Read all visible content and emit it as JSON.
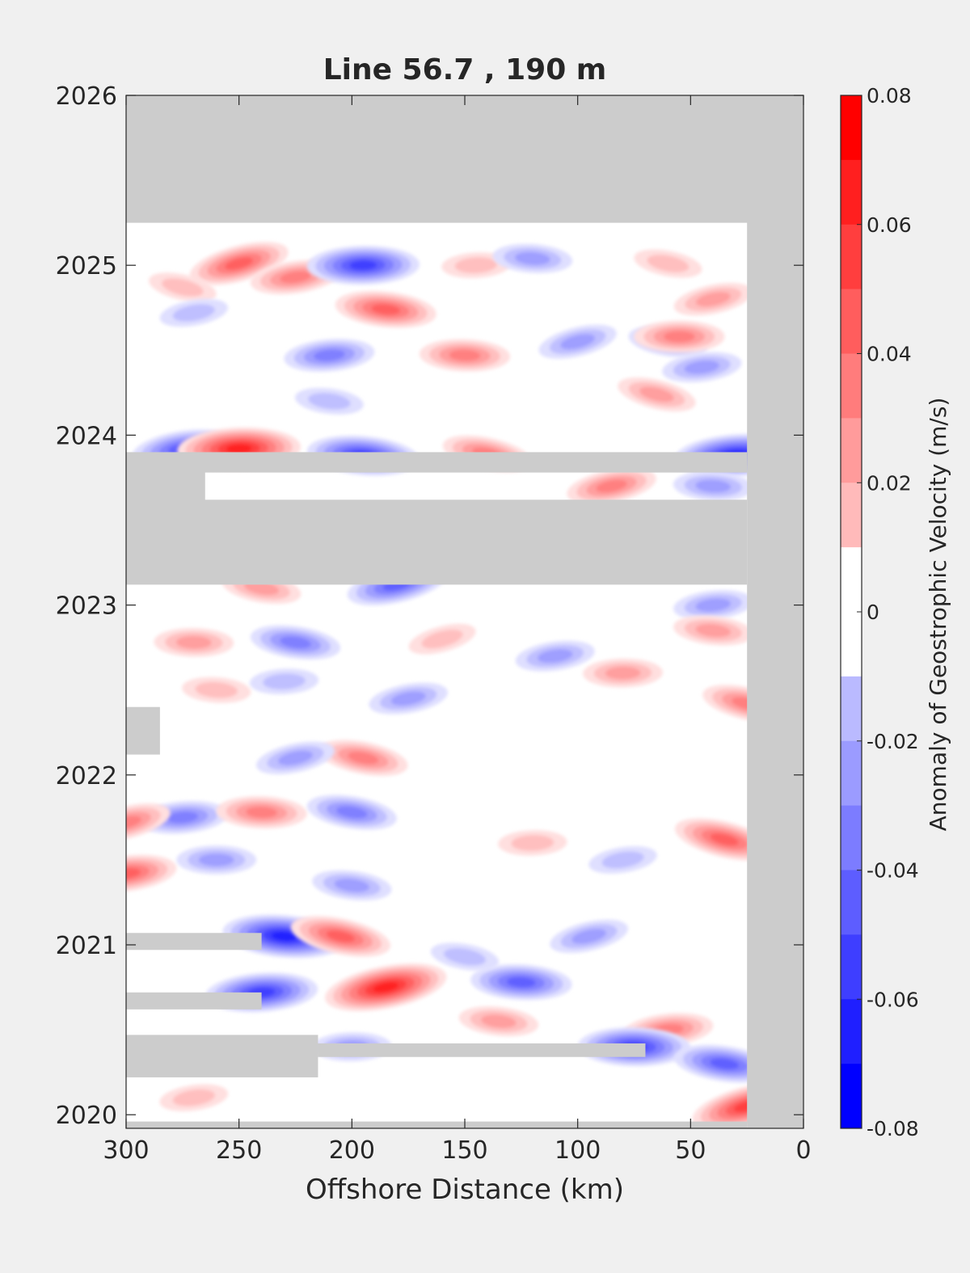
{
  "chart_data": {
    "type": "heatmap",
    "title": "Line 56.7 , 190 m",
    "xlabel": "Offshore Distance (km)",
    "ylabel": "",
    "x_reversed": true,
    "xlim": [
      300,
      0
    ],
    "ylim": [
      2019.92,
      2026
    ],
    "x_ticks": [
      "300",
      "250",
      "200",
      "150",
      "100",
      "50",
      "0"
    ],
    "y_ticks": [
      "2020",
      "2021",
      "2022",
      "2023",
      "2024",
      "2025",
      "2026"
    ],
    "colorbar": {
      "label": "Anomaly of Geostrophic Velocity (m/s)",
      "range": [
        -0.08,
        0.08
      ],
      "step": 0.01,
      "tick_labels": [
        "0.08",
        "0.06",
        "0.04",
        "0.02",
        "0",
        "-0.02",
        "-0.04",
        "-0.06",
        "-0.08"
      ]
    },
    "missing_data_color": "#cccccc",
    "positive_color": "#ff0000",
    "negative_color": "#0000ff",
    "missing_regions": [
      {
        "x0": 300,
        "x1": 0,
        "y0": 2025.25,
        "y1": 2026
      },
      {
        "x0": 25,
        "x1": 0,
        "y0": 2019.92,
        "y1": 2026
      },
      {
        "x0": 300,
        "x1": 25,
        "y0": 2023.12,
        "y1": 2023.62
      },
      {
        "x0": 300,
        "x1": 25,
        "y0": 2023.78,
        "y1": 2023.9
      },
      {
        "x0": 300,
        "x1": 265,
        "y0": 2023.6,
        "y1": 2023.8
      },
      {
        "x0": 300,
        "x1": 285,
        "y0": 2022.12,
        "y1": 2022.4
      },
      {
        "x0": 300,
        "x1": 240,
        "y0": 2020.97,
        "y1": 2021.07
      },
      {
        "x0": 300,
        "x1": 240,
        "y0": 2020.62,
        "y1": 2020.72
      },
      {
        "x0": 300,
        "x1": 215,
        "y0": 2020.22,
        "y1": 2020.47
      },
      {
        "x0": 215,
        "x1": 70,
        "y0": 2020.34,
        "y1": 2020.42
      },
      {
        "x0": 300,
        "x1": 25,
        "y0": 2019.92,
        "y1": 2019.96
      }
    ],
    "features": [
      {
        "x": 250,
        "y": 2025.01,
        "value": 0.05
      },
      {
        "x": 225,
        "y": 2024.93,
        "value": 0.04
      },
      {
        "x": 195,
        "y": 2025.0,
        "value": -0.06
      },
      {
        "x": 185,
        "y": 2024.74,
        "value": 0.05
      },
      {
        "x": 275,
        "y": 2024.87,
        "value": 0.02
      },
      {
        "x": 270,
        "y": 2024.72,
        "value": -0.02
      },
      {
        "x": 145,
        "y": 2025.0,
        "value": 0.02
      },
      {
        "x": 120,
        "y": 2025.04,
        "value": -0.03
      },
      {
        "x": 60,
        "y": 2025.01,
        "value": 0.02
      },
      {
        "x": 40,
        "y": 2024.8,
        "value": 0.03
      },
      {
        "x": 210,
        "y": 2024.47,
        "value": -0.04
      },
      {
        "x": 150,
        "y": 2024.47,
        "value": 0.04
      },
      {
        "x": 60,
        "y": 2024.55,
        "value": -0.03
      },
      {
        "x": 100,
        "y": 2024.55,
        "value": -0.03
      },
      {
        "x": 45,
        "y": 2024.4,
        "value": -0.03
      },
      {
        "x": 55,
        "y": 2024.58,
        "value": 0.04
      },
      {
        "x": 210,
        "y": 2024.2,
        "value": -0.02
      },
      {
        "x": 65,
        "y": 2024.24,
        "value": 0.03
      },
      {
        "x": 275,
        "y": 2023.92,
        "value": -0.05
      },
      {
        "x": 250,
        "y": 2023.92,
        "value": 0.07
      },
      {
        "x": 195,
        "y": 2023.88,
        "value": -0.06
      },
      {
        "x": 140,
        "y": 2023.89,
        "value": 0.04
      },
      {
        "x": 85,
        "y": 2023.7,
        "value": 0.04
      },
      {
        "x": 30,
        "y": 2023.88,
        "value": -0.07
      },
      {
        "x": 40,
        "y": 2023.7,
        "value": -0.03
      },
      {
        "x": 240,
        "y": 2023.1,
        "value": 0.03
      },
      {
        "x": 180,
        "y": 2023.12,
        "value": -0.05
      },
      {
        "x": 40,
        "y": 2023.0,
        "value": -0.03
      },
      {
        "x": 270,
        "y": 2022.78,
        "value": 0.03
      },
      {
        "x": 225,
        "y": 2022.78,
        "value": -0.04
      },
      {
        "x": 160,
        "y": 2022.8,
        "value": 0.02
      },
      {
        "x": 110,
        "y": 2022.7,
        "value": -0.03
      },
      {
        "x": 80,
        "y": 2022.6,
        "value": 0.03
      },
      {
        "x": 40,
        "y": 2022.85,
        "value": 0.03
      },
      {
        "x": 25,
        "y": 2022.42,
        "value": 0.04
      },
      {
        "x": 175,
        "y": 2022.45,
        "value": -0.03
      },
      {
        "x": 230,
        "y": 2022.55,
        "value": -0.02
      },
      {
        "x": 260,
        "y": 2022.5,
        "value": 0.02
      },
      {
        "x": 195,
        "y": 2022.1,
        "value": 0.04
      },
      {
        "x": 225,
        "y": 2022.1,
        "value": -0.03
      },
      {
        "x": 275,
        "y": 2021.75,
        "value": -0.04
      },
      {
        "x": 240,
        "y": 2021.78,
        "value": 0.04
      },
      {
        "x": 200,
        "y": 2021.78,
        "value": -0.04
      },
      {
        "x": 300,
        "y": 2021.72,
        "value": 0.04
      },
      {
        "x": 300,
        "y": 2021.42,
        "value": 0.05
      },
      {
        "x": 260,
        "y": 2021.5,
        "value": -0.03
      },
      {
        "x": 200,
        "y": 2021.35,
        "value": -0.03
      },
      {
        "x": 35,
        "y": 2021.62,
        "value": 0.05
      },
      {
        "x": 80,
        "y": 2021.5,
        "value": -0.02
      },
      {
        "x": 120,
        "y": 2021.6,
        "value": 0.02
      },
      {
        "x": 230,
        "y": 2021.05,
        "value": -0.07
      },
      {
        "x": 205,
        "y": 2021.05,
        "value": 0.05
      },
      {
        "x": 185,
        "y": 2020.75,
        "value": 0.07
      },
      {
        "x": 240,
        "y": 2020.72,
        "value": -0.06
      },
      {
        "x": 125,
        "y": 2020.78,
        "value": -0.05
      },
      {
        "x": 150,
        "y": 2020.93,
        "value": -0.02
      },
      {
        "x": 95,
        "y": 2021.05,
        "value": -0.03
      },
      {
        "x": 60,
        "y": 2020.5,
        "value": 0.04
      },
      {
        "x": 75,
        "y": 2020.4,
        "value": -0.06
      },
      {
        "x": 35,
        "y": 2020.3,
        "value": -0.05
      },
      {
        "x": 25,
        "y": 2020.05,
        "value": 0.06
      },
      {
        "x": 270,
        "y": 2020.1,
        "value": 0.02
      },
      {
        "x": 200,
        "y": 2020.4,
        "value": -0.03
      },
      {
        "x": 135,
        "y": 2020.55,
        "value": 0.03
      }
    ]
  }
}
